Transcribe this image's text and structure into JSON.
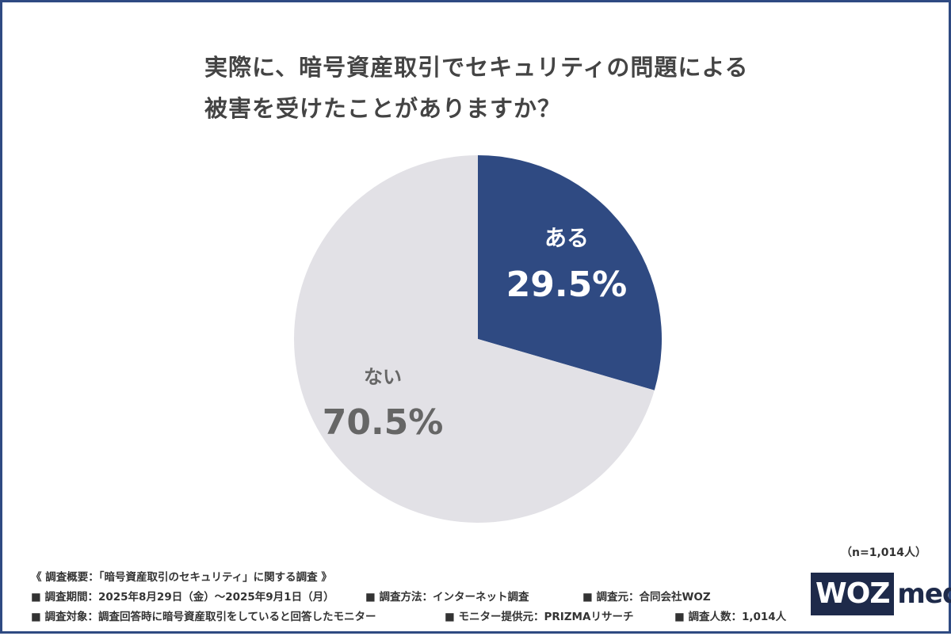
{
  "title": {
    "line1": "実際に、暗号資産取引でセキュリティの問題による",
    "line2": "被害を受けたことがありますか？"
  },
  "chart_data": {
    "type": "pie",
    "title": "実際に、暗号資産取引でセキュリティの問題による被害を受けたことがありますか？",
    "categories": [
      "ある",
      "ない"
    ],
    "values": [
      29.5,
      70.5
    ],
    "value_labels": [
      "29.5%",
      "70.5%"
    ],
    "colors": [
      "#2f4a82",
      "#e2e1e6"
    ],
    "label_colors": [
      "#ffffff",
      "#666666"
    ],
    "start": "12 o'clock",
    "direction": "clockwise"
  },
  "sample_size": "（n=1,014人）",
  "survey": {
    "header": "《 調査概要：「暗号資産取引のセキュリティ」に関する調査 》",
    "period": "■ 調査期間：2025年8月29日（金）〜2025年9月1日（月）",
    "method": "■ 調査方法：インターネット調査",
    "organizer": "■ 調査元：合同会社WOZ",
    "target": "■ 調査対象：調査回答時に暗号資産取引をしていると回答したモニター",
    "provider": "■ モニター提供元：PRIZMAリサーチ",
    "respondents": "■ 調査人数：1,014人"
  },
  "logo": {
    "part1": "WOZ",
    "part2": "media"
  }
}
